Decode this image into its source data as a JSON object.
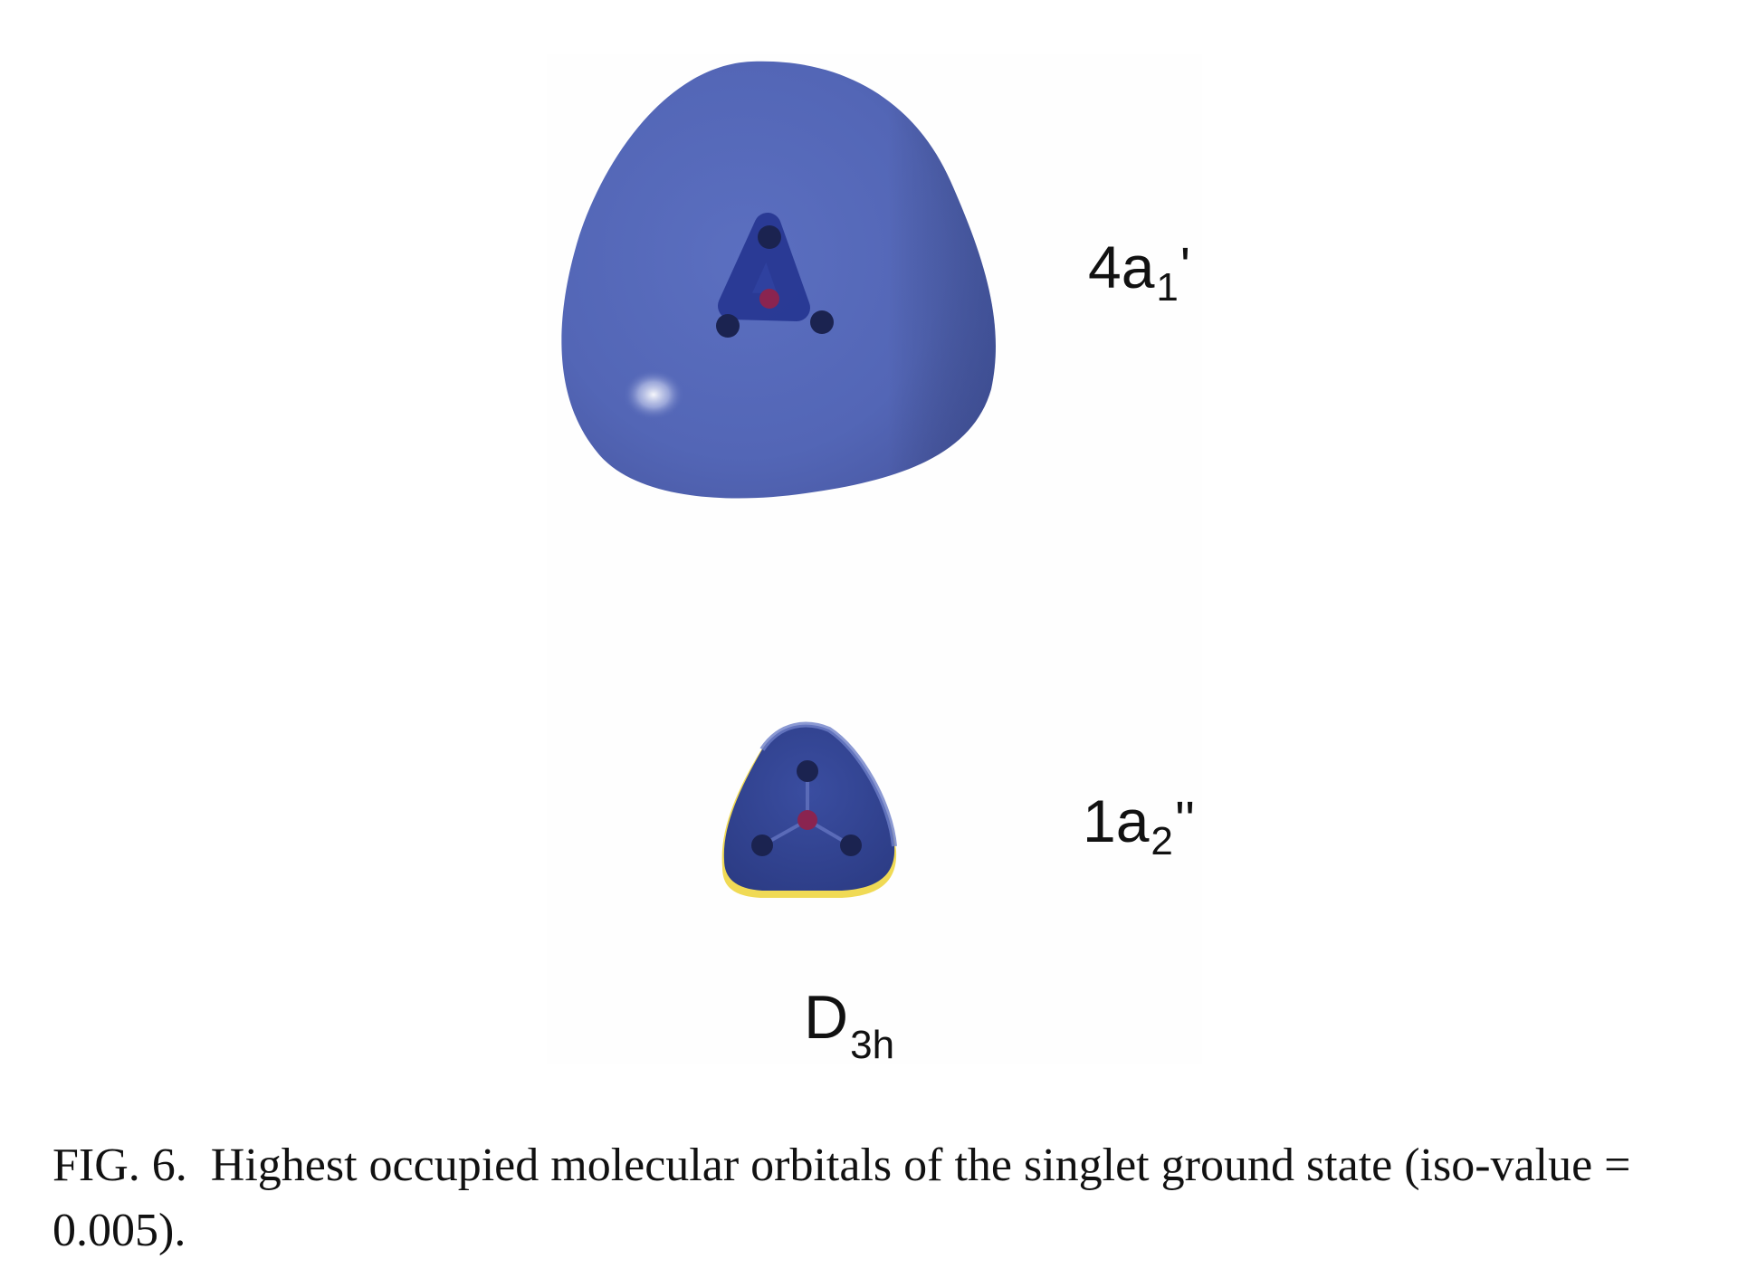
{
  "figure": {
    "orbitals": [
      {
        "name": "4a",
        "subscript": "1",
        "prime": "'"
      },
      {
        "name": "1a",
        "subscript": "2",
        "prime": "''"
      }
    ],
    "symmetry": {
      "main": "D",
      "subscript": "3h"
    },
    "colors": {
      "isosurface": "#5568b8",
      "isosurface_dark": "#34459a",
      "atom": "#1b2350",
      "center_atom": "#8a2450",
      "rim": "#f2e060"
    }
  },
  "caption": {
    "number": "FIG. 6.",
    "text": "Highest occupied molecular orbitals of the singlet ground state (iso-value = 0.005)."
  }
}
